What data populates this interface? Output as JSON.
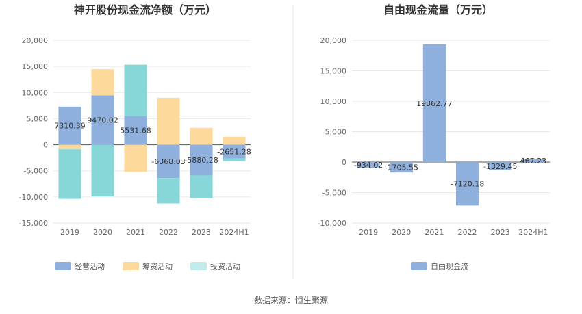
{
  "source_note": "数据来源：恒生聚源",
  "chart_data": [
    {
      "type": "bar",
      "stacked": true,
      "title": "神开股份现金流净额（万元）",
      "categories": [
        "2019",
        "2020",
        "2021",
        "2022",
        "2023",
        "2024H1"
      ],
      "ylim": [
        -15000,
        20000
      ],
      "yticks": [
        "20,000",
        "15,000",
        "10,000",
        "5,000",
        "0",
        "-5,000",
        "-10,000",
        "-15,000"
      ],
      "ytick_values": [
        20000,
        15000,
        10000,
        5000,
        0,
        -5000,
        -10000,
        -15000
      ],
      "grid": true,
      "legend_position": "bottom",
      "series": [
        {
          "name": "经营活动",
          "color": "#8fb0dc",
          "values": [
            7310.39,
            9470.02,
            5531.68,
            -6368.03,
            -5880.28,
            -2651.28
          ]
        },
        {
          "name": "筹资活动",
          "color": "#fdd99b",
          "values": [
            -860,
            5000,
            -5200,
            9000,
            3250,
            1550
          ]
        },
        {
          "name": "投资活动",
          "color": "#87d7d9",
          "values": [
            -9500,
            -9900,
            9800,
            -4900,
            -4300,
            -500
          ]
        }
      ],
      "data_labels": [
        "7310.39",
        "9470.02",
        "5531.68",
        "-6368.03",
        "-5880.28",
        "-2651.28"
      ]
    },
    {
      "type": "bar",
      "title": "自由现金流量（万元）",
      "categories": [
        "2019",
        "2020",
        "2021",
        "2022",
        "2023",
        "2024H1"
      ],
      "ylim": [
        -10000,
        20000
      ],
      "yticks": [
        "20,000",
        "15,000",
        "10,000",
        "5,000",
        "0",
        "-5,000",
        "-10,000"
      ],
      "ytick_values": [
        20000,
        15000,
        10000,
        5000,
        0,
        -5000,
        -10000
      ],
      "grid": true,
      "legend_position": "bottom",
      "series": [
        {
          "name": "自由现金流",
          "color": "#8fb0dc",
          "values": [
            -934.02,
            -1705.55,
            19362.77,
            -7120.18,
            -1329.45,
            467.23
          ]
        }
      ],
      "data_labels": [
        "-934.02",
        "-1705.55",
        "19362.77",
        "-7120.18",
        "-1329.45",
        "467.23"
      ]
    }
  ]
}
